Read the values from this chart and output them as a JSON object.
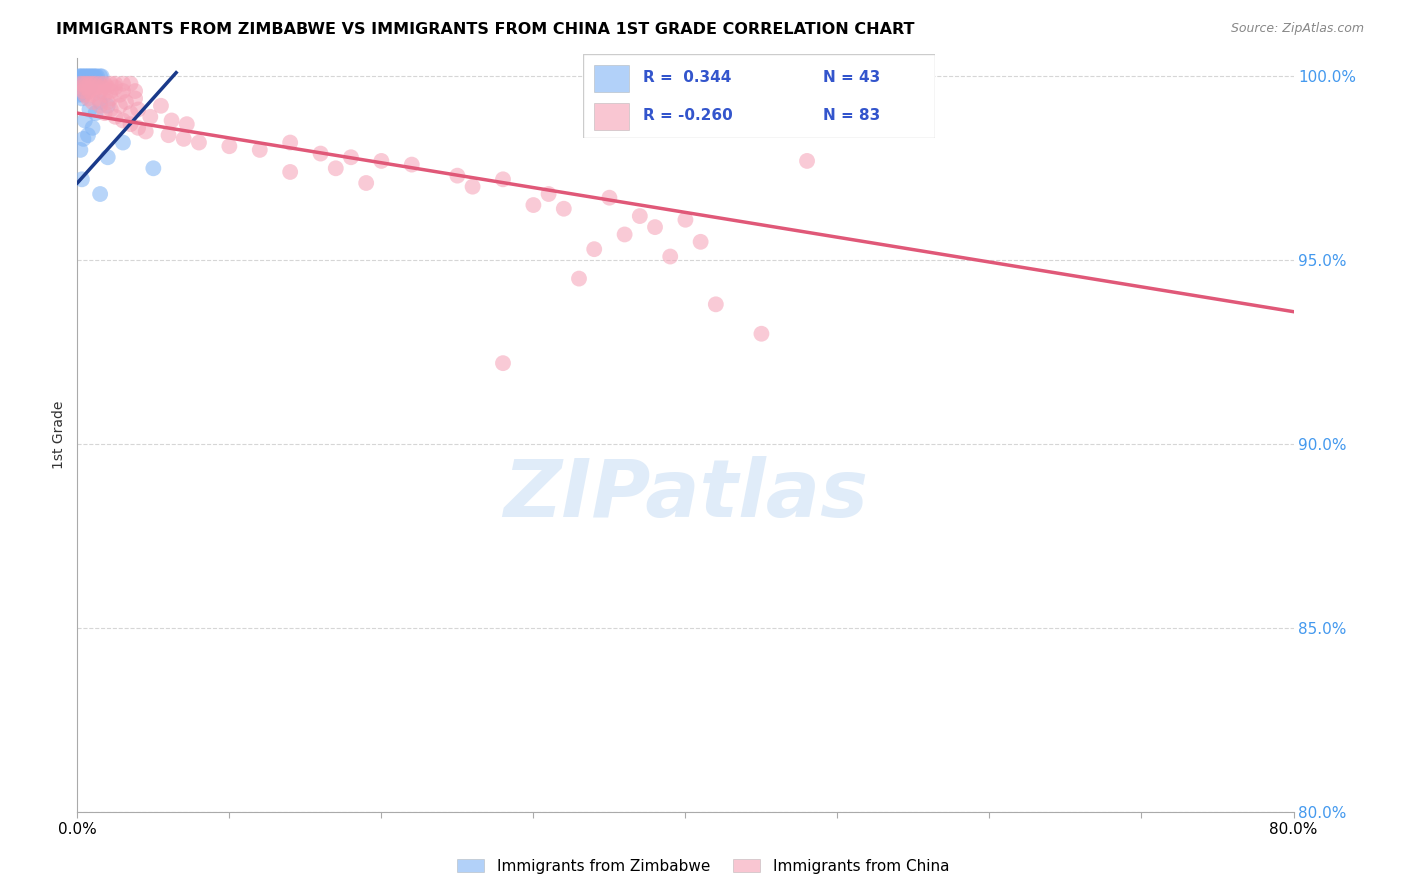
{
  "title": "IMMIGRANTS FROM ZIMBABWE VS IMMIGRANTS FROM CHINA 1ST GRADE CORRELATION CHART",
  "source": "Source: ZipAtlas.com",
  "ylabel": "1st Grade",
  "x_min": 0.0,
  "x_max": 0.8,
  "y_min": 0.8,
  "y_max": 1.005,
  "zimbabwe_color": "#7fb3f5",
  "china_color": "#f5a0b5",
  "zimbabwe_trendline_color": "#1a3a8a",
  "china_trendline_color": "#e05878",
  "watermark_text": "ZIPatlas",
  "zim_trend_x": [
    0.0,
    0.065
  ],
  "zim_trend_y": [
    0.971,
    1.001
  ],
  "china_trend_x": [
    0.0,
    0.8
  ],
  "china_trend_y": [
    0.99,
    0.936
  ],
  "zimbabwe_points": [
    [
      0.001,
      1.0
    ],
    [
      0.002,
      1.0
    ],
    [
      0.003,
      1.0
    ],
    [
      0.004,
      1.0
    ],
    [
      0.005,
      1.0
    ],
    [
      0.006,
      1.0
    ],
    [
      0.007,
      1.0
    ],
    [
      0.008,
      1.0
    ],
    [
      0.009,
      1.0
    ],
    [
      0.01,
      1.0
    ],
    [
      0.011,
      1.0
    ],
    [
      0.012,
      1.0
    ],
    [
      0.013,
      1.0
    ],
    [
      0.015,
      1.0
    ],
    [
      0.016,
      1.0
    ],
    [
      0.001,
      0.999
    ],
    [
      0.003,
      0.999
    ],
    [
      0.005,
      0.999
    ],
    [
      0.007,
      0.999
    ],
    [
      0.002,
      0.998
    ],
    [
      0.004,
      0.998
    ],
    [
      0.006,
      0.998
    ],
    [
      0.003,
      0.997
    ],
    [
      0.008,
      0.997
    ],
    [
      0.002,
      0.996
    ],
    [
      0.005,
      0.996
    ],
    [
      0.001,
      0.995
    ],
    [
      0.004,
      0.995
    ],
    [
      0.003,
      0.994
    ],
    [
      0.015,
      0.993
    ],
    [
      0.02,
      0.992
    ],
    [
      0.008,
      0.991
    ],
    [
      0.012,
      0.99
    ],
    [
      0.005,
      0.988
    ],
    [
      0.01,
      0.986
    ],
    [
      0.007,
      0.984
    ],
    [
      0.004,
      0.983
    ],
    [
      0.03,
      0.982
    ],
    [
      0.002,
      0.98
    ],
    [
      0.02,
      0.978
    ],
    [
      0.05,
      0.975
    ],
    [
      0.003,
      0.972
    ],
    [
      0.015,
      0.968
    ]
  ],
  "china_points": [
    [
      0.002,
      0.998
    ],
    [
      0.004,
      0.998
    ],
    [
      0.006,
      0.998
    ],
    [
      0.008,
      0.998
    ],
    [
      0.01,
      0.998
    ],
    [
      0.012,
      0.998
    ],
    [
      0.015,
      0.998
    ],
    [
      0.018,
      0.998
    ],
    [
      0.022,
      0.998
    ],
    [
      0.025,
      0.998
    ],
    [
      0.03,
      0.998
    ],
    [
      0.035,
      0.998
    ],
    [
      0.003,
      0.997
    ],
    [
      0.006,
      0.997
    ],
    [
      0.009,
      0.997
    ],
    [
      0.013,
      0.997
    ],
    [
      0.017,
      0.997
    ],
    [
      0.02,
      0.997
    ],
    [
      0.025,
      0.997
    ],
    [
      0.004,
      0.996
    ],
    [
      0.008,
      0.996
    ],
    [
      0.015,
      0.996
    ],
    [
      0.022,
      0.996
    ],
    [
      0.03,
      0.996
    ],
    [
      0.038,
      0.996
    ],
    [
      0.005,
      0.995
    ],
    [
      0.01,
      0.995
    ],
    [
      0.018,
      0.995
    ],
    [
      0.028,
      0.995
    ],
    [
      0.007,
      0.994
    ],
    [
      0.014,
      0.994
    ],
    [
      0.022,
      0.994
    ],
    [
      0.038,
      0.994
    ],
    [
      0.01,
      0.993
    ],
    [
      0.02,
      0.993
    ],
    [
      0.032,
      0.993
    ],
    [
      0.015,
      0.992
    ],
    [
      0.028,
      0.992
    ],
    [
      0.055,
      0.992
    ],
    [
      0.022,
      0.991
    ],
    [
      0.04,
      0.991
    ],
    [
      0.018,
      0.99
    ],
    [
      0.035,
      0.99
    ],
    [
      0.025,
      0.989
    ],
    [
      0.048,
      0.989
    ],
    [
      0.03,
      0.988
    ],
    [
      0.062,
      0.988
    ],
    [
      0.035,
      0.987
    ],
    [
      0.072,
      0.987
    ],
    [
      0.04,
      0.986
    ],
    [
      0.045,
      0.985
    ],
    [
      0.06,
      0.984
    ],
    [
      0.07,
      0.983
    ],
    [
      0.08,
      0.982
    ],
    [
      0.14,
      0.982
    ],
    [
      0.1,
      0.981
    ],
    [
      0.12,
      0.98
    ],
    [
      0.16,
      0.979
    ],
    [
      0.18,
      0.978
    ],
    [
      0.2,
      0.977
    ],
    [
      0.48,
      0.977
    ],
    [
      0.22,
      0.976
    ],
    [
      0.17,
      0.975
    ],
    [
      0.14,
      0.974
    ],
    [
      0.25,
      0.973
    ],
    [
      0.28,
      0.972
    ],
    [
      0.19,
      0.971
    ],
    [
      0.26,
      0.97
    ],
    [
      0.31,
      0.968
    ],
    [
      0.35,
      0.967
    ],
    [
      0.3,
      0.965
    ],
    [
      0.32,
      0.964
    ],
    [
      0.37,
      0.962
    ],
    [
      0.4,
      0.961
    ],
    [
      0.38,
      0.959
    ],
    [
      0.36,
      0.957
    ],
    [
      0.41,
      0.955
    ],
    [
      0.34,
      0.953
    ],
    [
      0.39,
      0.951
    ],
    [
      0.33,
      0.945
    ],
    [
      0.42,
      0.938
    ],
    [
      0.45,
      0.93
    ],
    [
      0.28,
      0.922
    ]
  ]
}
